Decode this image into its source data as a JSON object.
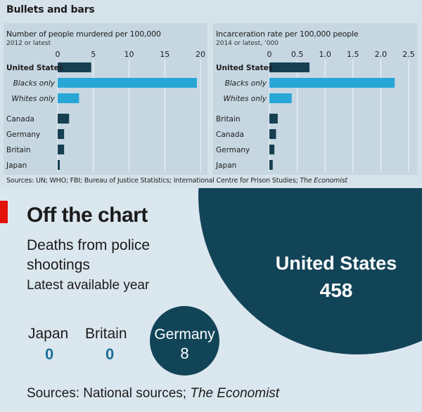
{
  "top": {
    "title": "Bullets and bars",
    "sources_prefix": "Sources: UN; WHO; FBI; Bureau of Justice Statistics; International Centre for Prison Studies; ",
    "sources_italic": "The Economist"
  },
  "chart_data": [
    {
      "type": "bar",
      "orientation": "horizontal",
      "title": "Number of people murdered per 100,000",
      "subtitle": "2012 or latest",
      "xlim": [
        0,
        20
      ],
      "ticks": [
        0,
        5,
        10,
        15,
        20
      ],
      "categories": [
        "United States",
        "Blacks only",
        "Whites only",
        "Canada",
        "Germany",
        "Britain",
        "Japan"
      ],
      "label_styles": [
        "bold",
        "italic",
        "italic",
        "normal",
        "normal",
        "normal",
        "normal"
      ],
      "values": [
        4.7,
        19.5,
        3.0,
        1.6,
        0.9,
        0.9,
        0.3
      ],
      "bar_colors": [
        "#173f52",
        "#28a6d6",
        "#28a6d6",
        "#173f52",
        "#173f52",
        "#173f52",
        "#173f52"
      ]
    },
    {
      "type": "bar",
      "orientation": "horizontal",
      "title": "Incarceration rate per 100,000 people",
      "subtitle": "2014 or latest, ’000",
      "xlim": [
        0,
        2.5
      ],
      "ticks": [
        0,
        0.5,
        1.0,
        1.5,
        2.0,
        2.5
      ],
      "tick_labels": [
        "0",
        "0.5",
        "1.0",
        "1.5",
        "2.0",
        "2.5"
      ],
      "categories": [
        "United States",
        "Blacks only",
        "Whites only",
        "Britain",
        "Canada",
        "Germany",
        "Japan"
      ],
      "label_styles": [
        "bold",
        "italic",
        "italic",
        "normal",
        "normal",
        "normal",
        "normal"
      ],
      "values": [
        0.72,
        2.25,
        0.4,
        0.15,
        0.12,
        0.09,
        0.06
      ],
      "bar_colors": [
        "#173f52",
        "#28a6d6",
        "#28a6d6",
        "#173f52",
        "#173f52",
        "#173f52",
        "#173f52"
      ]
    },
    {
      "type": "bubble",
      "title": "Off the chart",
      "subtitle": [
        "Deaths from police",
        "shootings",
        "Latest available year"
      ],
      "categories": [
        "United States",
        "Japan",
        "Britain",
        "Germany"
      ],
      "values": [
        458,
        0,
        0,
        8
      ]
    }
  ],
  "bottom": {
    "title": "Off the chart",
    "subtitle_line1": "Deaths from police",
    "subtitle_line2": "shootings",
    "subtitle_line3": "Latest available year",
    "us_name": "United States",
    "us_value": "458",
    "japan_name": "Japan",
    "japan_value": "0",
    "britain_name": "Britain",
    "britain_value": "0",
    "germany_name": "Germany",
    "germany_value": "8",
    "sources_prefix": "Sources: National sources; ",
    "sources_italic": "The Economist"
  },
  "colors": {
    "dark_bar": "#173f52",
    "light_bar": "#28a6d6",
    "bubble": "#124458",
    "zero_value": "#1b6f99",
    "accent_red": "#e3120b"
  }
}
